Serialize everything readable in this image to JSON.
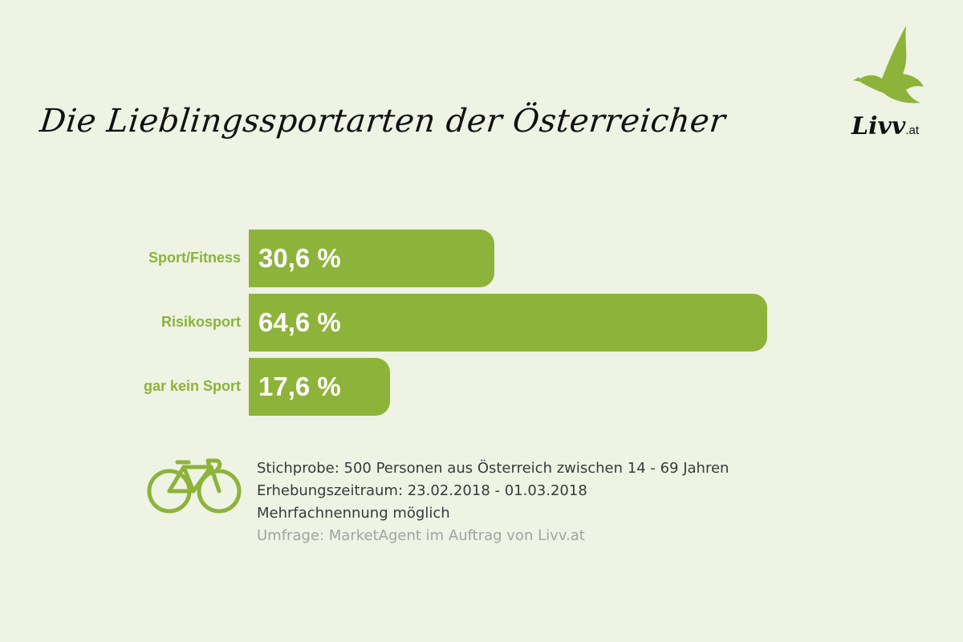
{
  "title": "Die Lieblingssportarten der Österreicher",
  "logo": {
    "text": "Livv",
    "suffix": ".at",
    "icon": "bird-icon"
  },
  "colors": {
    "background": "#eef3e4",
    "bar": "#8db33a",
    "label": "#8db33a",
    "value_text": "#ffffff",
    "note_text": "#3a3a3a",
    "source_text": "#a3a3a3"
  },
  "chart_data": {
    "type": "bar",
    "orientation": "horizontal",
    "categories": [
      "Sport/Fitness",
      "Risikosport",
      "gar kein Sport"
    ],
    "values": [
      30.6,
      64.6,
      17.6
    ],
    "value_labels": [
      "30,6 %",
      "64,6 %",
      "17,6 %"
    ],
    "unit": "%",
    "xlim": [
      0,
      70
    ],
    "grid": false,
    "legend": false
  },
  "notes": {
    "icon": "bicycle-icon",
    "lines": [
      "Stichprobe: 500 Personen aus Österreich zwischen 14 - 69 Jahren",
      "Erhebungszeitraum: 23.02.2018 - 01.03.2018",
      "Mehrfachnennung möglich"
    ],
    "source": "Umfrage: MarketAgent im Auftrag von Livv.at"
  }
}
